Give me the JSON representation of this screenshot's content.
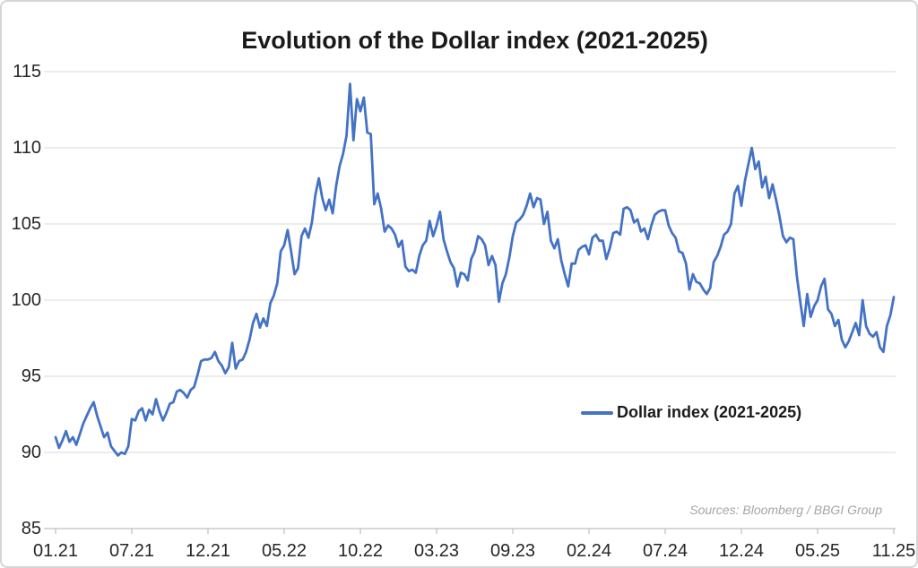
{
  "source_note": "Sources: Bloomberg / BBGI Group",
  "colors": {
    "line": "#4472C4",
    "grid": "#d9d9d9",
    "axis": "#bfbfbf",
    "title_text": "#1a1a1a",
    "tick_text": "#262626",
    "source_text": "#a6a6a6",
    "background": "#ffffff"
  },
  "chart_data": {
    "type": "line",
    "title": "Evolution of the Dollar index (2021-2025)",
    "xlabel": "",
    "ylabel": "",
    "ylim": [
      85,
      115
    ],
    "y_ticks": [
      85,
      90,
      95,
      100,
      105,
      110,
      115
    ],
    "grid": "horizontal",
    "legend_position": "inside-right",
    "x_tick_labels": [
      "01.21",
      "07.21",
      "12.21",
      "05.22",
      "10.22",
      "03.23",
      "09.23",
      "02.24",
      "07.24",
      "12.24",
      "05.25",
      "11.25"
    ],
    "series": [
      {
        "name": "Dollar index (2021-2025)",
        "color": "#4472C4",
        "values": [
          91.0,
          90.3,
          90.8,
          91.4,
          90.7,
          91.0,
          90.5,
          91.2,
          91.9,
          92.4,
          92.9,
          93.3,
          92.4,
          91.7,
          91.0,
          91.3,
          90.4,
          90.1,
          89.8,
          90.0,
          89.9,
          90.4,
          92.2,
          92.1,
          92.7,
          92.9,
          92.1,
          92.8,
          92.5,
          93.5,
          92.7,
          92.1,
          92.6,
          93.2,
          93.3,
          94.0,
          94.1,
          93.9,
          93.6,
          94.1,
          94.3,
          95.1,
          96.0,
          96.1,
          96.1,
          96.2,
          96.6,
          96.0,
          95.7,
          95.2,
          95.6,
          97.2,
          95.5,
          96.0,
          96.1,
          96.6,
          97.4,
          98.5,
          99.1,
          98.2,
          98.8,
          98.3,
          99.8,
          100.3,
          101.1,
          103.2,
          103.6,
          104.6,
          103.2,
          101.7,
          102.1,
          104.2,
          104.7,
          104.1,
          105.1,
          106.9,
          108.0,
          106.7,
          105.9,
          106.6,
          105.7,
          107.5,
          108.8,
          109.6,
          110.8,
          114.2,
          110.5,
          113.2,
          112.4,
          113.3,
          111.0,
          110.9,
          106.3,
          107.0,
          106.0,
          104.5,
          104.9,
          104.7,
          104.3,
          103.5,
          103.9,
          102.2,
          101.9,
          102.0,
          101.8,
          102.9,
          103.6,
          103.9,
          105.2,
          104.2,
          104.9,
          105.8,
          104.0,
          103.2,
          102.5,
          102.1,
          100.9,
          101.8,
          101.7,
          101.3,
          102.7,
          103.2,
          104.2,
          104.0,
          103.6,
          102.3,
          102.9,
          102.3,
          99.9,
          101.1,
          101.7,
          102.8,
          104.2,
          105.1,
          105.3,
          105.6,
          106.2,
          107.0,
          106.1,
          106.7,
          106.6,
          105.0,
          105.8,
          103.9,
          103.4,
          104.0,
          102.6,
          101.7,
          100.9,
          102.4,
          102.4,
          103.3,
          103.5,
          103.6,
          103.0,
          104.1,
          104.3,
          103.9,
          103.9,
          102.7,
          103.4,
          104.4,
          104.5,
          104.3,
          106.0,
          106.1,
          105.9,
          105.1,
          105.3,
          104.5,
          104.7,
          104.0,
          104.9,
          105.6,
          105.8,
          105.9,
          105.9,
          104.9,
          104.4,
          104.1,
          103.2,
          103.1,
          102.4,
          100.7,
          101.7,
          101.2,
          101.1,
          100.7,
          100.4,
          100.8,
          102.5,
          102.9,
          103.5,
          104.3,
          104.5,
          105.0,
          107.0,
          107.5,
          106.2,
          107.8,
          108.9,
          110.0,
          108.6,
          109.1,
          107.4,
          108.1,
          106.7,
          107.6,
          106.6,
          105.5,
          104.2,
          103.8,
          104.1,
          104.0,
          101.6,
          99.9,
          98.3,
          100.4,
          98.9,
          99.6,
          100.0,
          100.9,
          101.4,
          99.4,
          99.1,
          98.3,
          98.7,
          97.4,
          96.9,
          97.3,
          97.9,
          98.5,
          97.7,
          100.0,
          98.3,
          97.8,
          97.6,
          97.9,
          96.9,
          96.6,
          98.3,
          99.0,
          100.2
        ]
      }
    ]
  }
}
